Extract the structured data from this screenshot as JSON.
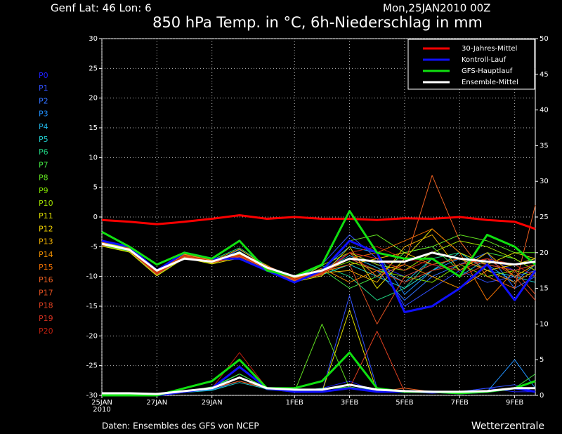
{
  "chart_data": {
    "type": "line",
    "location": "Genf  Lat: 46 Lon: 6",
    "run": "Mon,25JAN2010 00Z",
    "title": "850 hPa Temp. in °C, 6h-Niederschlag in mm",
    "source": "Daten: Ensembles des GFS von NCEP",
    "brand": "Wetterzentrale",
    "year": "2010",
    "grid": true,
    "legend": "top-right",
    "x": [
      0,
      1,
      2,
      3,
      4,
      5,
      6,
      7,
      8,
      9,
      10,
      11,
      12,
      13,
      14,
      15,
      15.75
    ],
    "xlim": [
      0,
      15.75
    ],
    "xticks": [
      {
        "value": 0,
        "label": "25JAN"
      },
      {
        "value": 2,
        "label": "27JAN"
      },
      {
        "value": 4,
        "label": "29JAN"
      },
      {
        "value": 7,
        "label": "1FEB"
      },
      {
        "value": 9,
        "label": "3FEB"
      },
      {
        "value": 11,
        "label": "5FEB"
      },
      {
        "value": 13,
        "label": "7FEB"
      },
      {
        "value": 15,
        "label": "9FEB"
      }
    ],
    "ylim": [
      -30,
      30
    ],
    "yticks": [
      -30,
      -25,
      -20,
      -15,
      -10,
      -5,
      0,
      5,
      10,
      15,
      20,
      25,
      30
    ],
    "y2lim": [
      0,
      50
    ],
    "y2ticks": [
      0,
      5,
      10,
      15,
      20,
      25,
      30,
      35,
      40,
      45,
      50
    ],
    "series": [
      {
        "name": "30-Jahres-Mittel",
        "color": "#ff0000",
        "values": [
          -0.5,
          -0.8,
          -1.2,
          -0.8,
          -0.3,
          0.3,
          -0.3,
          0,
          -0.3,
          -0.3,
          -0.5,
          -0.2,
          -0.3,
          0,
          -0.5,
          -0.8,
          -2
        ],
        "precip": null
      },
      {
        "name": "Kontroll-Lauf",
        "color": "#1010ff",
        "values": [
          -4,
          -5,
          -9,
          -6,
          -7,
          -7,
          -9,
          -11,
          -9,
          -4,
          -6,
          -16,
          -15,
          -12,
          -8,
          -14,
          -9
        ],
        "precip": [
          0,
          0,
          0,
          0.5,
          1,
          4,
          1,
          0.5,
          0.5,
          1,
          0.5,
          0.5,
          0.5,
          0.3,
          0.5,
          1,
          0.5
        ]
      },
      {
        "name": "GFS-Hauptlauf",
        "color": "#10e010",
        "values": [
          -2.5,
          -5,
          -8,
          -6,
          -7,
          -4,
          -9,
          -10,
          -8,
          1,
          -6,
          -7,
          -7,
          -10,
          -3,
          -5,
          -8
        ],
        "precip": [
          0,
          0,
          0,
          1,
          2,
          5,
          1,
          1,
          2,
          6,
          1,
          0.5,
          0.5,
          0.3,
          0.5,
          1,
          2
        ]
      },
      {
        "name": "Ensemble-Mittel",
        "color": "#ffffff",
        "values": [
          -4.5,
          -5.5,
          -9,
          -7,
          -7.5,
          -6,
          -8.5,
          -10,
          -9,
          -7,
          -7.5,
          -7.5,
          -6,
          -7,
          -7.5,
          -8,
          -7.5
        ],
        "precip": [
          0.3,
          0.3,
          0.2,
          0.6,
          1,
          2.5,
          1,
          0.8,
          0.8,
          1.5,
          0.8,
          0.6,
          0.5,
          0.5,
          0.6,
          1,
          1
        ]
      }
    ],
    "members": [
      {
        "name": "P0",
        "color": "#2020ff",
        "values": [
          -4.5,
          -5.5,
          -9.5,
          -6.5,
          -7.5,
          -6,
          -8.5,
          -10.5,
          -9,
          -6,
          -8,
          -10,
          -8,
          -9,
          -7,
          -9,
          -8
        ],
        "precip": [
          0,
          0,
          0,
          0.5,
          1,
          2,
          1,
          0.5,
          1,
          2,
          0.5,
          0.5,
          0.3,
          0.5,
          1,
          0.5,
          0.5
        ]
      },
      {
        "name": "P1",
        "color": "#3050ff",
        "values": [
          -4.5,
          -5.8,
          -9,
          -6.8,
          -7.2,
          -6.5,
          -8.8,
          -11,
          -8,
          -3,
          -7,
          -15,
          -12,
          -9,
          -11,
          -10,
          -9
        ],
        "precip": [
          0,
          0,
          0,
          0.4,
          1,
          2.5,
          0.8,
          0.5,
          0.5,
          14,
          1,
          0.5,
          0.5,
          0.5,
          1,
          1.5,
          0.5
        ]
      },
      {
        "name": "P2",
        "color": "#3070ff",
        "values": [
          -4.3,
          -5.2,
          -9.2,
          -6.2,
          -7.8,
          -5.5,
          -8.2,
          -10.2,
          -9.5,
          -7,
          -9,
          -14,
          -10,
          -8,
          -6,
          -12,
          -10
        ]
      },
      {
        "name": "P3",
        "color": "#2090ff",
        "values": [
          -4.6,
          -5.6,
          -9.6,
          -6.6,
          -7.6,
          -6.2,
          -8.6,
          -10.6,
          -8.8,
          -5,
          -6,
          -13,
          -9,
          -7,
          -8,
          -11,
          -8
        ],
        "precip": [
          0,
          0,
          0,
          0.5,
          0.8,
          2,
          1,
          0.6,
          0.8,
          1.5,
          0.5,
          0.4,
          0.5,
          0.3,
          0.5,
          5,
          1
        ]
      },
      {
        "name": "P4",
        "color": "#20b0e0",
        "values": [
          -4.4,
          -5.4,
          -9.4,
          -6.4,
          -7.4,
          -6.4,
          -8.4,
          -10.4,
          -9.2,
          -6.5,
          -8.5,
          -11,
          -7,
          -10,
          -7,
          -8,
          -7
        ],
        "precip": [
          0,
          0,
          0,
          0.5,
          1,
          2,
          1,
          0.5,
          0.5,
          1,
          0.5,
          0.5,
          0.5,
          0.3,
          0.5,
          1,
          0.5
        ]
      },
      {
        "name": "P5",
        "color": "#20d0d0",
        "values": [
          -4.7,
          -5.7,
          -9.7,
          -6.7,
          -7.7,
          -6.7,
          -8.7,
          -10.7,
          -9.7,
          -8,
          -10,
          -12,
          -9,
          -6,
          -9,
          -10,
          -11
        ],
        "precip": [
          0,
          0,
          0,
          0.4,
          0.7,
          1.8,
          0.9,
          0.5,
          0.5,
          1,
          0.5,
          0.5,
          0.5,
          0.3,
          0.5,
          1,
          0.5
        ]
      },
      {
        "name": "P6",
        "color": "#20d080",
        "values": [
          -4.2,
          -5.2,
          -9.2,
          -6.2,
          -7.2,
          -5.2,
          -8.2,
          -10.2,
          -8.2,
          -10,
          -14,
          -12,
          -7,
          -6,
          -8,
          -9,
          -8
        ],
        "precip": [
          0,
          0,
          0,
          0.5,
          1,
          3,
          1,
          0.5,
          1,
          1,
          0.5,
          0.5,
          0.5,
          0.3,
          0.5,
          1,
          0.5
        ]
      },
      {
        "name": "P7",
        "color": "#40e040",
        "values": [
          -4.8,
          -5.8,
          -9.8,
          -6.8,
          -7.8,
          -5.8,
          -8.8,
          -10.8,
          -8.8,
          -12,
          -10,
          -6,
          -5,
          -9,
          -6,
          -7,
          -9
        ],
        "precip": [
          0,
          0,
          0,
          0.5,
          1.2,
          3,
          1,
          0.6,
          0.8,
          1.2,
          0.5,
          0.5,
          0.5,
          0.3,
          0.5,
          1,
          3
        ]
      },
      {
        "name": "P8",
        "color": "#60e020",
        "values": [
          -4.5,
          -5.3,
          -9.3,
          -6.3,
          -7.3,
          -6.3,
          -8.3,
          -10.3,
          -9.3,
          -4,
          -3,
          -6,
          -5,
          -3,
          -4,
          -6,
          -6
        ],
        "precip": [
          0,
          0,
          0,
          0.5,
          1,
          2,
          1,
          0.5,
          10,
          1,
          0.5,
          0.5,
          0.5,
          0.3,
          0.5,
          1,
          0.5
        ]
      },
      {
        "name": "P9",
        "color": "#80e000",
        "values": [
          -4.6,
          -5.9,
          -9.1,
          -6.9,
          -7.1,
          -6.9,
          -8.9,
          -10.1,
          -9.1,
          -7.5,
          -9,
          -10,
          -11,
          -8,
          -10,
          -9,
          -10
        ]
      },
      {
        "name": "P10",
        "color": "#a0e000",
        "values": [
          -4.1,
          -5.1,
          -9.1,
          -6.1,
          -7.9,
          -6.1,
          -8.1,
          -10.9,
          -8.1,
          -6,
          -8,
          -9,
          -6,
          -4,
          -5,
          -7,
          -9
        ]
      },
      {
        "name": "P11",
        "color": "#e0e000",
        "values": [
          -4.9,
          -5.9,
          -9.9,
          -6.9,
          -7.9,
          -6.9,
          -8.9,
          -10.9,
          -9.9,
          -5,
          -12,
          -7,
          -2,
          -6,
          -8,
          -6,
          -7
        ],
        "precip": [
          0,
          0,
          0,
          0.5,
          1,
          2,
          1,
          0.5,
          0.5,
          12,
          0.5,
          0.5,
          0.5,
          0.3,
          0.5,
          1,
          0.5
        ]
      },
      {
        "name": "P12",
        "color": "#f0d000",
        "values": [
          -4.3,
          -5.3,
          -9.3,
          -6.3,
          -7.3,
          -6.3,
          -8.3,
          -10.3,
          -9.3,
          -8,
          -7,
          -6,
          -8,
          -7,
          -9,
          -8,
          -7
        ]
      },
      {
        "name": "P13",
        "color": "#f0b000",
        "values": [
          -4.4,
          -5.4,
          -9.4,
          -6.4,
          -7.4,
          -5.4,
          -8.4,
          -10.4,
          -9.4,
          -9,
          -11,
          -5,
          -3,
          -9,
          -6,
          -10,
          -8
        ],
        "precip": [
          0,
          0,
          0,
          0.5,
          1,
          2,
          1,
          0.5,
          0.5,
          1,
          0.5,
          0.5,
          0.5,
          0.3,
          0.5,
          1,
          0.5
        ]
      },
      {
        "name": "P14",
        "color": "#f09000",
        "values": [
          -4.6,
          -5.6,
          -9.6,
          -6.6,
          -7.6,
          -6.6,
          -8.6,
          -10.6,
          -8.6,
          -11,
          -9,
          -8,
          -10,
          -12,
          -9,
          -11,
          -9
        ]
      },
      {
        "name": "P15",
        "color": "#f07000",
        "values": [
          -4.5,
          -5.5,
          -9.5,
          -6.5,
          -7.5,
          -6.5,
          -8.5,
          -10.5,
          -9.5,
          -7,
          -6,
          -4,
          -2,
          -6,
          -14,
          -9,
          -8
        ]
      },
      {
        "name": "P16",
        "color": "#f06020",
        "values": [
          -4.2,
          -5.7,
          -9.7,
          -6.7,
          -7.7,
          -6.7,
          -8.7,
          -10.7,
          -9.7,
          -6,
          -10,
          -8,
          7,
          -4,
          -10,
          -12,
          2
        ],
        "precip": [
          0,
          0,
          0,
          0.5,
          1,
          2,
          1,
          0.5,
          0.5,
          1,
          0.5,
          1,
          0.5,
          0.3,
          0.5,
          1,
          0.5
        ]
      },
      {
        "name": "P17",
        "color": "#e05020",
        "values": [
          -4.8,
          -5.2,
          -9.2,
          -6.2,
          -7.2,
          -6.2,
          -8.2,
          -10.2,
          -9.2,
          -8,
          -18,
          -10,
          -8,
          -7,
          -8,
          -9,
          -13
        ]
      },
      {
        "name": "P18",
        "color": "#e04020",
        "values": [
          -4.5,
          -5.4,
          -9.4,
          -6.4,
          -7.4,
          -6.4,
          -8.4,
          -10.4,
          -9.4,
          -7,
          -9,
          -11,
          -9,
          -8,
          -7,
          -10,
          -14
        ],
        "precip": [
          0,
          0,
          0,
          0.5,
          1,
          2,
          1,
          0.5,
          0.5,
          1,
          9,
          0.5,
          0.5,
          0.3,
          0.5,
          1,
          0.5
        ]
      },
      {
        "name": "P19",
        "color": "#d03020",
        "values": [
          -4.6,
          -5.6,
          -9.6,
          -6.6,
          -7.6,
          -6.6,
          -8.6,
          -10.6,
          -9.6,
          -6,
          -7,
          -9,
          -7,
          -10,
          -8,
          -9,
          -8
        ]
      },
      {
        "name": "P20",
        "color": "#c02010",
        "values": [
          -4.4,
          -5.4,
          -9.4,
          -6.4,
          -7.4,
          -6.4,
          -8.4,
          -10.4,
          -9.4,
          -6,
          -5,
          -7,
          -8,
          -9,
          -7,
          -8,
          -10
        ],
        "precip": [
          0,
          0,
          0,
          0.5,
          1,
          6,
          1,
          0.5,
          0.5,
          1,
          0.5,
          0.5,
          0.5,
          0.3,
          0.5,
          1,
          0.5
        ]
      }
    ]
  }
}
